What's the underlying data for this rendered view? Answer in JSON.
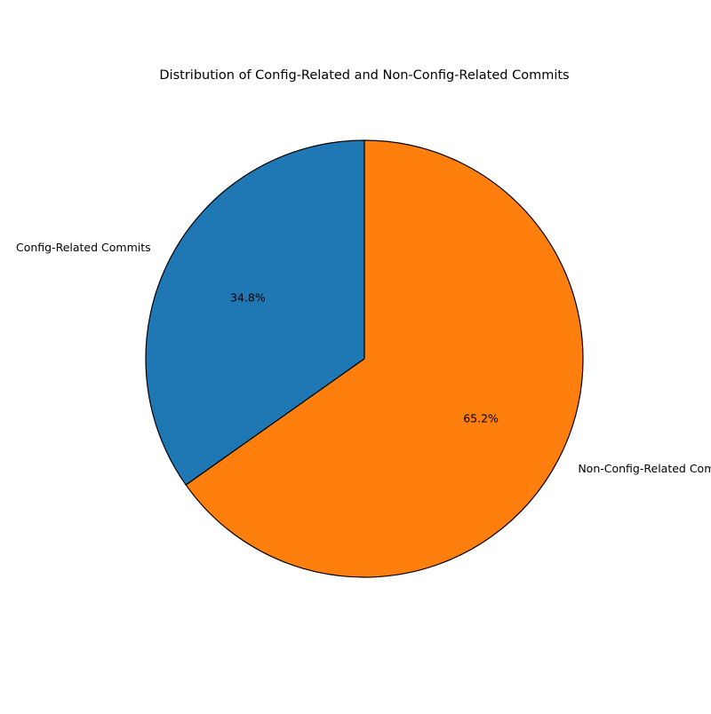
{
  "chart_data": {
    "type": "pie",
    "title": "Distribution of Config-Related and Non-Config-Related Commits",
    "slices": [
      {
        "label": "Config-Related Commits",
        "percent_label": "34.8%",
        "value": 34.8,
        "color": "#1f77b4"
      },
      {
        "label": "Non-Config-Related Commits",
        "percent_label": "65.2%",
        "value": 65.2,
        "color": "#ff7f0e"
      }
    ],
    "start_angle_deg": 90,
    "direction": "counterclockwise",
    "edge_color": "#000000",
    "legend": "none"
  }
}
